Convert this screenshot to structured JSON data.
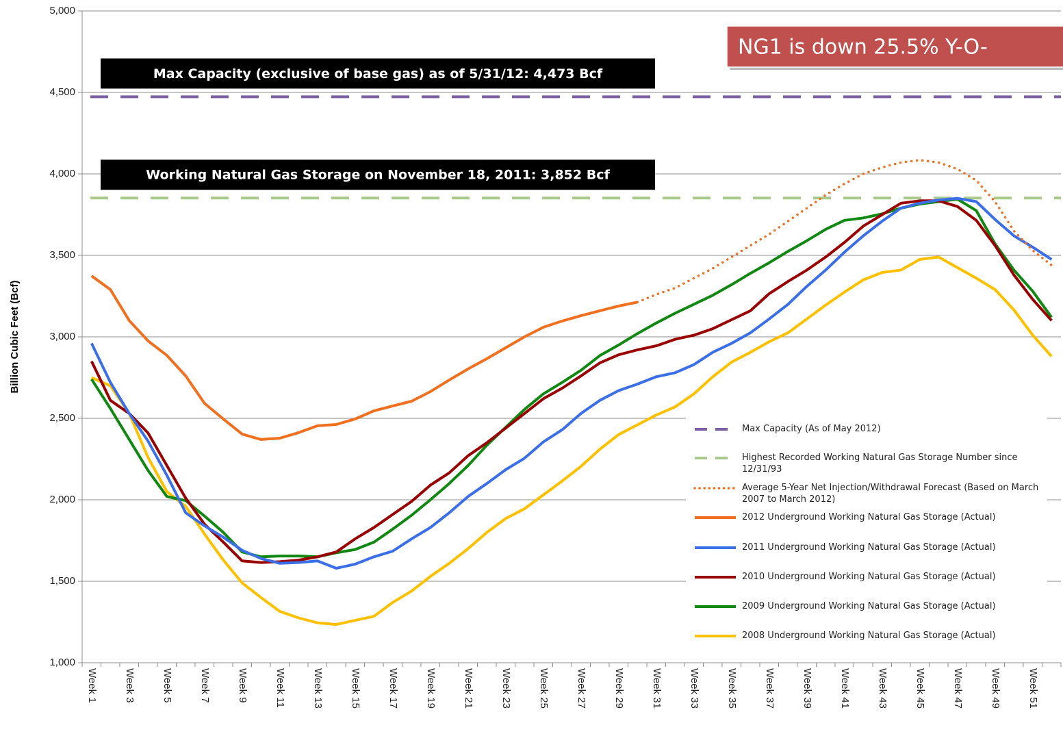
{
  "chart_data": {
    "type": "line",
    "y_label": "Billion Cubic Feet (Bcf)",
    "categories": [
      "Week 1",
      null,
      "Week 3",
      null,
      "Week 5",
      null,
      "Week 7",
      null,
      "Week 9",
      null,
      "Week 11",
      null,
      "Week 13",
      null,
      "Week 15",
      null,
      "Week 17",
      null,
      "Week 19",
      null,
      "Week 21",
      null,
      "Week 23",
      null,
      "Week 25",
      null,
      "Week 27",
      null,
      "Week 29",
      null,
      "Week 31",
      null,
      "Week 33",
      null,
      "Week 35",
      null,
      "Week 37",
      null,
      "Week 39",
      null,
      "Week 41",
      null,
      "Week 43",
      null,
      "Week 45",
      null,
      "Week 47",
      null,
      "Week 49",
      null,
      "Week 51",
      null
    ],
    "ylim": [
      1000,
      5000
    ],
    "yticks": [
      {
        "value": 1000,
        "label": "1,000"
      },
      {
        "value": 1500,
        "label": "1,500"
      },
      {
        "value": 2000,
        "label": "2,000"
      },
      {
        "value": 2500,
        "label": "2,500"
      },
      {
        "value": 3000,
        "label": "3,000"
      },
      {
        "value": 3500,
        "label": "3,500"
      },
      {
        "value": 4000,
        "label": "4,000"
      },
      {
        "value": 4500,
        "label": "4,500"
      },
      {
        "value": 5000,
        "label": "5,000"
      }
    ],
    "grid": true,
    "reference_lines": [
      {
        "name": "Max Capacity (As of May 2012)",
        "value": 4473,
        "color": "#7b5fa0",
        "annotation": "Max Capacity (exclusive of base gas) as of 5/31/12: 4,473 Bcf"
      },
      {
        "name": "Highest Recorded Working Natural Gas Storage Number since 12/31/93",
        "value": 3852,
        "color": "#a9c98a",
        "annotation": "Working Natural Gas Storage on November 18, 2011: 3,852 Bcf"
      }
    ],
    "series": [
      {
        "name": "Average 5-Year Net Injection/Withdrawal Forecast (Based on March 2007 to March 2012)",
        "color": "#f07020",
        "style": "dotted",
        "values": [
          null,
          null,
          null,
          null,
          null,
          null,
          null,
          null,
          null,
          null,
          null,
          null,
          null,
          null,
          null,
          null,
          null,
          null,
          null,
          null,
          null,
          null,
          null,
          null,
          null,
          null,
          null,
          null,
          null,
          3213,
          3260,
          3300,
          3360,
          3420,
          3490,
          3560,
          3630,
          3710,
          3790,
          3870,
          3940,
          4000,
          4040,
          4070,
          4085,
          4070,
          4030,
          3960,
          3830,
          3650,
          3530,
          3440
        ]
      },
      {
        "name": "2012 Underground Working Natural Gas Storage (Actual)",
        "color": "#f07020",
        "style": "solid",
        "values": [
          3374,
          3290,
          3100,
          2975,
          2886,
          2760,
          2592,
          2496,
          2403,
          2370,
          2378,
          2412,
          2454,
          2462,
          2496,
          2546,
          2576,
          2605,
          2664,
          2735,
          2803,
          2866,
          2933,
          3000,
          3059,
          3097,
          3130,
          3160,
          3189,
          3213,
          null,
          null,
          null,
          null,
          null,
          null,
          null,
          null,
          null,
          null,
          null,
          null,
          null,
          null,
          null,
          null,
          null,
          null,
          null,
          null,
          null,
          null
        ]
      },
      {
        "name": "2011 Underground Working Natural Gas Storage (Actual)",
        "color": "#3b6fe8",
        "style": "solid",
        "values": [
          2960,
          2720,
          2530,
          2360,
          2150,
          1920,
          1840,
          1770,
          1690,
          1640,
          1610,
          1615,
          1625,
          1580,
          1605,
          1650,
          1685,
          1760,
          1830,
          1920,
          2020,
          2100,
          2185,
          2255,
          2355,
          2430,
          2530,
          2610,
          2670,
          2710,
          2755,
          2780,
          2830,
          2905,
          2960,
          3025,
          3110,
          3200,
          3310,
          3410,
          3520,
          3620,
          3710,
          3790,
          3820,
          3840,
          3850,
          3830,
          3720,
          3620,
          3550,
          3475
        ]
      },
      {
        "name": "2010 Underground Working Natural Gas Storage (Actual)",
        "color": "#990000",
        "style": "solid",
        "values": [
          2850,
          2610,
          2530,
          2410,
          2210,
          2010,
          1850,
          1740,
          1625,
          1615,
          1620,
          1630,
          1650,
          1680,
          1760,
          1830,
          1910,
          1990,
          2090,
          2165,
          2270,
          2350,
          2440,
          2530,
          2620,
          2685,
          2760,
          2840,
          2890,
          2920,
          2945,
          2985,
          3010,
          3050,
          3105,
          3160,
          3265,
          3340,
          3410,
          3490,
          3580,
          3680,
          3750,
          3820,
          3835,
          3835,
          3800,
          3715,
          3560,
          3380,
          3230,
          3100
        ]
      },
      {
        "name": "2009 Underground Working Natural Gas Storage (Actual)",
        "color": "#118811",
        "style": "solid",
        "values": [
          2740,
          2560,
          2370,
          2180,
          2020,
          1995,
          1900,
          1800,
          1680,
          1650,
          1655,
          1655,
          1650,
          1675,
          1695,
          1740,
          1820,
          1905,
          2000,
          2100,
          2210,
          2335,
          2445,
          2555,
          2650,
          2720,
          2795,
          2885,
          2950,
          3020,
          3085,
          3145,
          3200,
          3255,
          3320,
          3390,
          3455,
          3525,
          3590,
          3660,
          3715,
          3730,
          3755,
          3790,
          3815,
          3830,
          3845,
          3775,
          3570,
          3410,
          3280,
          3120
        ]
      },
      {
        "name": "2008 Underground Working Natural Gas Storage (Actual)",
        "color": "#ffc000",
        "style": "solid",
        "values": [
          2750,
          2700,
          2530,
          2260,
          2050,
          1960,
          1790,
          1630,
          1490,
          1400,
          1315,
          1275,
          1245,
          1235,
          1260,
          1285,
          1370,
          1440,
          1530,
          1610,
          1700,
          1800,
          1885,
          1945,
          2030,
          2115,
          2205,
          2310,
          2400,
          2460,
          2520,
          2570,
          2650,
          2755,
          2845,
          2905,
          2970,
          3025,
          3110,
          3195,
          3275,
          3350,
          3395,
          3410,
          3475,
          3490,
          3425,
          3360,
          3290,
          3165,
          3010,
          2880
        ]
      }
    ],
    "callout": "NG1 is down 25.5% Y-O-"
  }
}
